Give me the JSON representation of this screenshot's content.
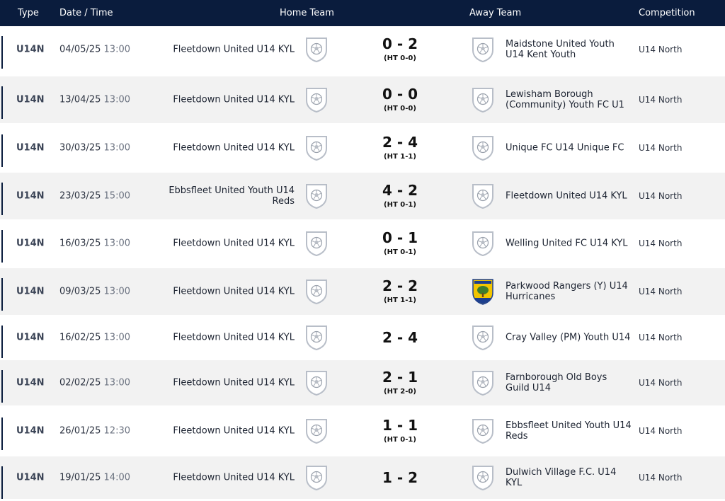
{
  "header": {
    "type": "Type",
    "date_time": "Date / Time",
    "home_team": "Home Team",
    "away_team": "Away Team",
    "competition": "Competition"
  },
  "default_crest_icon": "shield-football-icon",
  "fixtures": [
    {
      "type": "U14N",
      "date": "04/05/25",
      "time": "13:00",
      "home": "Fleetdown United U14 KYL",
      "home_crest": "shield-football-icon",
      "score": "0 - 2",
      "ht": "(HT 0-0)",
      "away": "Maidstone United Youth U14 Kent Youth",
      "away_crest": "shield-football-icon",
      "competition": "U14 North"
    },
    {
      "type": "U14N",
      "date": "13/04/25",
      "time": "13:00",
      "home": "Fleetdown United U14 KYL",
      "home_crest": "shield-football-icon",
      "score": "0 - 0",
      "ht": "(HT 0-0)",
      "away": "Lewisham Borough (Community) Youth FC U1",
      "away_crest": "shield-football-icon",
      "competition": "U14 North"
    },
    {
      "type": "U14N",
      "date": "30/03/25",
      "time": "13:00",
      "home": "Fleetdown United U14 KYL",
      "home_crest": "shield-football-icon",
      "score": "2 - 4",
      "ht": "(HT 1-1)",
      "away": "Unique FC U14 Unique FC",
      "away_crest": "shield-football-icon",
      "competition": "U14 North"
    },
    {
      "type": "U14N",
      "date": "23/03/25",
      "time": "15:00",
      "home": "Ebbsfleet United Youth U14 Reds",
      "home_crest": "shield-football-icon",
      "score": "4 - 2",
      "ht": "(HT 0-1)",
      "away": "Fleetdown United U14 KYL",
      "away_crest": "shield-football-icon",
      "competition": "U14 North"
    },
    {
      "type": "U14N",
      "date": "16/03/25",
      "time": "13:00",
      "home": "Fleetdown United U14 KYL",
      "home_crest": "shield-football-icon",
      "score": "0 - 1",
      "ht": "(HT 0-1)",
      "away": "Welling United FC U14 KYL",
      "away_crest": "shield-football-icon",
      "competition": "U14 North"
    },
    {
      "type": "U14N",
      "date": "09/03/25",
      "time": "13:00",
      "home": "Fleetdown United U14 KYL",
      "home_crest": "shield-football-icon",
      "score": "2 - 2",
      "ht": "(HT 1-1)",
      "away": "Parkwood Rangers (Y) U14 Hurricanes",
      "away_crest": "parkwood-rangers-crest-icon",
      "competition": "U14 North"
    },
    {
      "type": "U14N",
      "date": "16/02/25",
      "time": "13:00",
      "home": "Fleetdown United U14 KYL",
      "home_crest": "shield-football-icon",
      "score": "2 - 4",
      "ht": "",
      "away": "Cray Valley (PM) Youth U14",
      "away_crest": "shield-football-icon",
      "competition": "U14 North"
    },
    {
      "type": "U14N",
      "date": "02/02/25",
      "time": "13:00",
      "home": "Fleetdown United U14 KYL",
      "home_crest": "shield-football-icon",
      "score": "2 - 1",
      "ht": "(HT 2-0)",
      "away": "Farnborough Old Boys Guild U14",
      "away_crest": "shield-football-icon",
      "competition": "U14 North"
    },
    {
      "type": "U14N",
      "date": "26/01/25",
      "time": "12:30",
      "home": "Fleetdown United U14 KYL",
      "home_crest": "shield-football-icon",
      "score": "1 - 1",
      "ht": "(HT 0-1)",
      "away": "Ebbsfleet United Youth U14 Reds",
      "away_crest": "shield-football-icon",
      "competition": "U14 North"
    },
    {
      "type": "U14N",
      "date": "19/01/25",
      "time": "14:00",
      "home": "Fleetdown United U14 KYL",
      "home_crest": "shield-football-icon",
      "score": "1 - 2",
      "ht": "",
      "away": "Dulwich Village F.C. U14 KYL",
      "away_crest": "shield-football-icon",
      "competition": "U14 North"
    }
  ],
  "colors": {
    "header_bg": "#0a1c3d",
    "row_alt_bg": "#f2f2f2",
    "crest_stroke": "#b8bec8",
    "parkwood_yellow": "#f2c500",
    "parkwood_blue": "#1d3f8f",
    "parkwood_green": "#3f7d2c"
  }
}
